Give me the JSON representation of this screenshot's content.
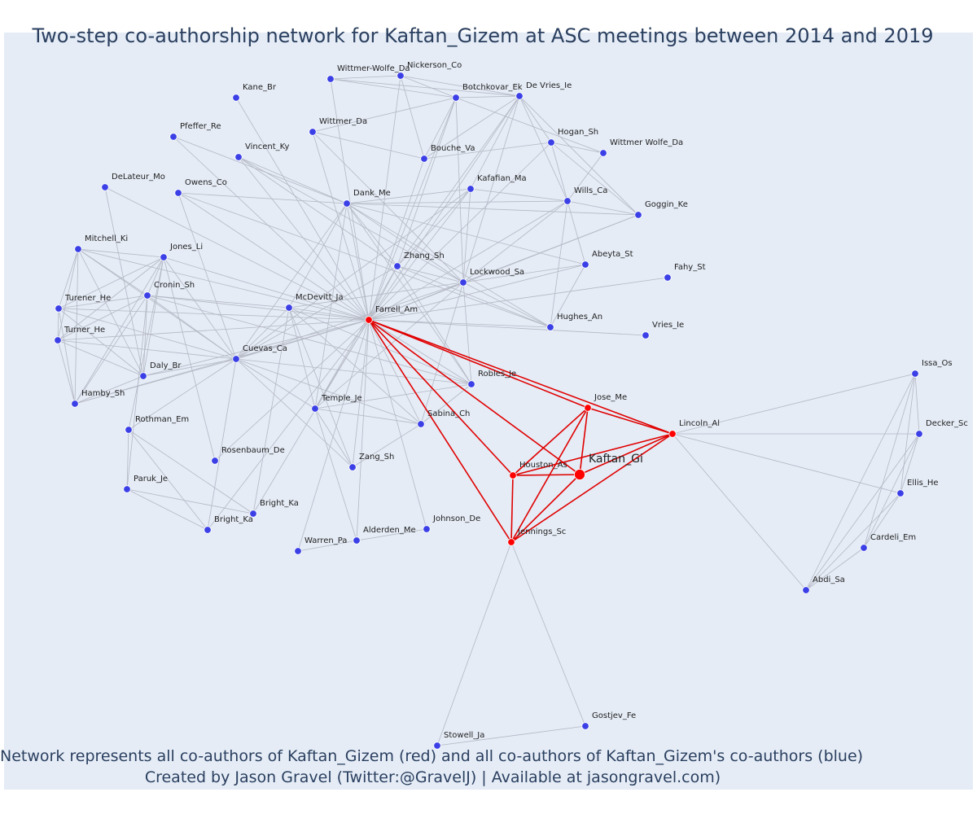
{
  "title": "Two-step co-authorship network for Kaftan_Gizem at ASC meetings between 2014 and 2019",
  "caption": {
    "line1": "Network represents all co-authors of Kaftan_Gizem (red) and all co-authors of Kaftan_Gizem's co-authors (blue)",
    "line2": "Created by Jason Gravel (Twitter:@GravelJ) | Available at jasongravel.com)"
  },
  "colors": {
    "first_degree": "#ff0000",
    "second_degree": "#3b3fe6",
    "edge": "#b4b8c4",
    "first_edge": "#e00000"
  },
  "network": {
    "focal": "Kaftan_Gi",
    "nodes": [
      {
        "id": "Kaftan_Gi",
        "group": "focal"
      },
      {
        "id": "Jose_Me",
        "group": "first"
      },
      {
        "id": "Lincoln_Al",
        "group": "first"
      },
      {
        "id": "Houston_As",
        "group": "first"
      },
      {
        "id": "Jennings_Sc",
        "group": "first"
      },
      {
        "id": "Farrell_Am",
        "group": "first"
      },
      {
        "id": "Wittmer-Wolfe_Da",
        "group": "second"
      },
      {
        "id": "Nickerson_Co",
        "group": "second"
      },
      {
        "id": "Botchkovar_Ek",
        "group": "second"
      },
      {
        "id": "De Vries_Ie",
        "group": "second"
      },
      {
        "id": "Kane_Br",
        "group": "second"
      },
      {
        "id": "Wittmer_Da",
        "group": "second"
      },
      {
        "id": "Hogan_Sh",
        "group": "second"
      },
      {
        "id": "Wittmer Wolfe_Da",
        "group": "second"
      },
      {
        "id": "Pfeffer_Re",
        "group": "second"
      },
      {
        "id": "Vincent_Ky",
        "group": "second"
      },
      {
        "id": "Bouche_Va",
        "group": "second"
      },
      {
        "id": "DeLateur_Mo",
        "group": "second"
      },
      {
        "id": "Owens_Co",
        "group": "second"
      },
      {
        "id": "Kafafian_Ma",
        "group": "second"
      },
      {
        "id": "Dank_Me",
        "group": "second"
      },
      {
        "id": "Wills_Ca",
        "group": "second"
      },
      {
        "id": "Goggin_Ke",
        "group": "second"
      },
      {
        "id": "Mitchell_Ki",
        "group": "second"
      },
      {
        "id": "Jones_Li",
        "group": "second"
      },
      {
        "id": "Zhang_Sh",
        "group": "second"
      },
      {
        "id": "Abeyta_St",
        "group": "second"
      },
      {
        "id": "Lockwood_Sa",
        "group": "second"
      },
      {
        "id": "Fahy_St",
        "group": "second"
      },
      {
        "id": "Cronin_Sh",
        "group": "second"
      },
      {
        "id": "Turener_He",
        "group": "second"
      },
      {
        "id": "McDevitt_Ja",
        "group": "second"
      },
      {
        "id": "Turner_He",
        "group": "second"
      },
      {
        "id": "Hughes_An",
        "group": "second"
      },
      {
        "id": "Vries_Ie",
        "group": "second"
      },
      {
        "id": "Cuevas_Ca",
        "group": "second"
      },
      {
        "id": "Daly_Br",
        "group": "second"
      },
      {
        "id": "Issa_Os",
        "group": "second"
      },
      {
        "id": "Hamby_Sh",
        "group": "second"
      },
      {
        "id": "Robles_Je",
        "group": "second"
      },
      {
        "id": "Temple_Je",
        "group": "second"
      },
      {
        "id": "Rothman_Em",
        "group": "second"
      },
      {
        "id": "Sabina_Ch",
        "group": "second"
      },
      {
        "id": "Decker_Sc",
        "group": "second"
      },
      {
        "id": "Rosenbaum_De",
        "group": "second"
      },
      {
        "id": "Zang_Sh",
        "group": "second"
      },
      {
        "id": "Paruk_Je",
        "group": "second"
      },
      {
        "id": "Ellis_He",
        "group": "second"
      },
      {
        "id": "Bright_Ka (1)",
        "label": "Bright_Ka",
        "group": "second"
      },
      {
        "id": "Bright_Ka (2)",
        "label": "Bright_Ka",
        "group": "second"
      },
      {
        "id": "Johnson_De",
        "group": "second"
      },
      {
        "id": "Alderden_Me",
        "group": "second"
      },
      {
        "id": "Warren_Pa",
        "group": "second"
      },
      {
        "id": "Cardeli_Em",
        "group": "second"
      },
      {
        "id": "Abdi_Sa",
        "group": "second"
      },
      {
        "id": "Gostjev_Fe",
        "group": "second"
      },
      {
        "id": "Stowell_Ja",
        "group": "second"
      }
    ]
  }
}
